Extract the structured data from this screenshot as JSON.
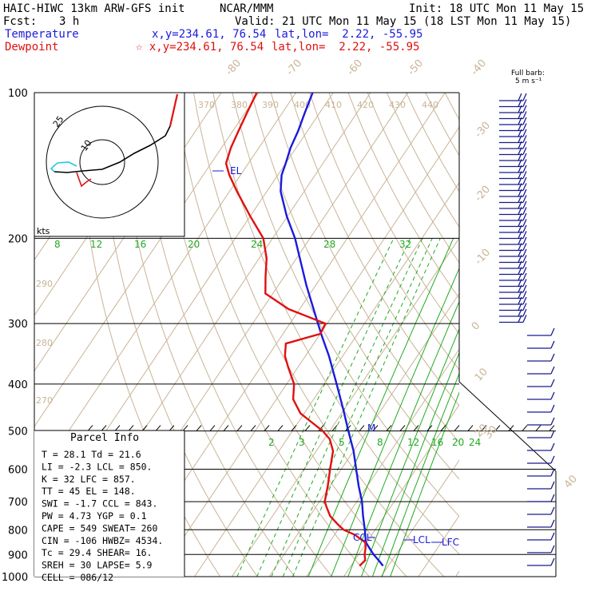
{
  "header": {
    "model": "HAIC-HIWC 13km ARW-GFS init",
    "org": "NCAR/MMM",
    "init": "Init: 18 UTC Mon 11 May 15",
    "fcst_label": "Fcst:",
    "fcst_value": "3 h",
    "valid": "Valid: 21 UTC Mon 11 May 15 (18 LST Mon 11 May 15)",
    "temp_label": "Temperature",
    "temp_xy": "x,y=234.61, 76.54",
    "temp_latlon": "lat,lon=  2.22, -55.95",
    "dew_label": "Dewpoint",
    "dew_xy": "☆ x,y=234.61, 76.54",
    "dew_latlon": "lat,lon=  2.22, -55.95"
  },
  "colors": {
    "temperature": "#1a1adc",
    "dewpoint": "#e01010",
    "mixing_ratio": "#22aa22",
    "isotherm": "#c8b496",
    "barb": "#1a1a8c",
    "hodo_black": "#000000",
    "hodo_cyan": "#22c8e8",
    "hodo_red": "#e01010"
  },
  "barb_legend": {
    "line1": "Full barb:",
    "line2": "5 m s⁻¹"
  },
  "hodograph": {
    "ring_label_outer": "25",
    "ring_label_inner": "10",
    "units": "kts"
  },
  "parcel_info": {
    "title": "Parcel Info",
    "rows": [
      "T   =   28.1  Td =  21.6",
      "LI  =   -2.3  LCL =  850.",
      "K   =     32  LFC =  857.",
      "TT  =     45  EL  =  148.",
      "SWI =   -1.7  CCL =  843.",
      "PW  =   4.73  YGP =   0.1",
      "CAPE =   549  SWEAT=  260",
      "CIN  =  -106  HWBZ= 4534.",
      "Tc  =   29.4  SHEAR=  16.",
      "SREH =    30  LAPSE=  5.9",
      "CELL = 086/12"
    ]
  },
  "chart_data": {
    "type": "line",
    "title": "",
    "pressure_axis": {
      "scale": "log",
      "range_hPa": [
        1000,
        100
      ],
      "ticks": [
        100,
        200,
        300,
        400,
        500,
        600,
        700,
        800,
        900,
        1000
      ],
      "tick_labels": [
        "100",
        "200",
        "300",
        "400",
        "500",
        "600",
        "700",
        "800",
        "900",
        "1000"
      ]
    },
    "isotherm_labels_degC": [
      "-80",
      "-70",
      "-60",
      "-50",
      "-40",
      "-30",
      "-20",
      "-10",
      "0",
      "10",
      "20",
      "30",
      "40"
    ],
    "dry_adiabat_labels_K": [
      "370",
      "380",
      "390",
      "400",
      "410",
      "420",
      "430",
      "440",
      "290",
      "280",
      "270"
    ],
    "mixing_ratio_labels_upper": [
      "8",
      "12",
      "16",
      "20",
      "24",
      "28",
      "32"
    ],
    "mixing_ratio_labels_lower": [
      "2",
      "3",
      "4",
      "5",
      "6",
      "8",
      "12",
      "16",
      "20",
      "24"
    ],
    "series": [
      {
        "name": "Temperature",
        "pressure_hPa": [
          950,
          925,
          900,
          870,
          850,
          800,
          750,
          700,
          650,
          600,
          550,
          500,
          450,
          400,
          350,
          320,
          300,
          250,
          200,
          180,
          160,
          148,
          140,
          130,
          120,
          110,
          100
        ],
        "temp_C": [
          28.6,
          26.4,
          24.0,
          21.5,
          19.8,
          17.2,
          14.3,
          11.4,
          7.7,
          4.0,
          0.0,
          -5.0,
          -10.4,
          -16.6,
          -23.7,
          -28.9,
          -32.5,
          -42.5,
          -54.0,
          -60.2,
          -66.3,
          -69.0,
          -70.0,
          -71.5,
          -72.5,
          -74.0,
          -75.5
        ]
      },
      {
        "name": "Dewpoint",
        "pressure_hPa": [
          950,
          925,
          900,
          870,
          850,
          820,
          800,
          780,
          750,
          720,
          700,
          650,
          600,
          550,
          520,
          500,
          460,
          430,
          400,
          370,
          350,
          330,
          315,
          300,
          280,
          260,
          240,
          220,
          200,
          180,
          160,
          148,
          140,
          130,
          120,
          110,
          100
        ],
        "temp_C": [
          22.3,
          22.8,
          21.6,
          20.6,
          19.6,
          15.5,
          11.5,
          9.0,
          5.5,
          3.0,
          1.4,
          -0.6,
          -3.0,
          -5.5,
          -8.5,
          -11.9,
          -21.0,
          -25.5,
          -28.0,
          -32.5,
          -35.5,
          -37.5,
          -30.0,
          -30.5,
          -43.0,
          -52.0,
          -55.0,
          -58.0,
          -62.5,
          -70.0,
          -78.0,
          -83.0,
          -86.0,
          -87.5,
          -88.5,
          -89.5,
          -90.5
        ]
      }
    ],
    "annotations": [
      {
        "text": "EL",
        "pressure_hPa": 148
      },
      {
        "text": "CCL",
        "pressure_hPa": 843
      },
      {
        "text": "LCL",
        "pressure_hPa": 850
      },
      {
        "text": "LFC",
        "pressure_hPa": 857
      },
      {
        "text": "M",
        "pressure_hPa": 490
      }
    ],
    "grid": true
  }
}
